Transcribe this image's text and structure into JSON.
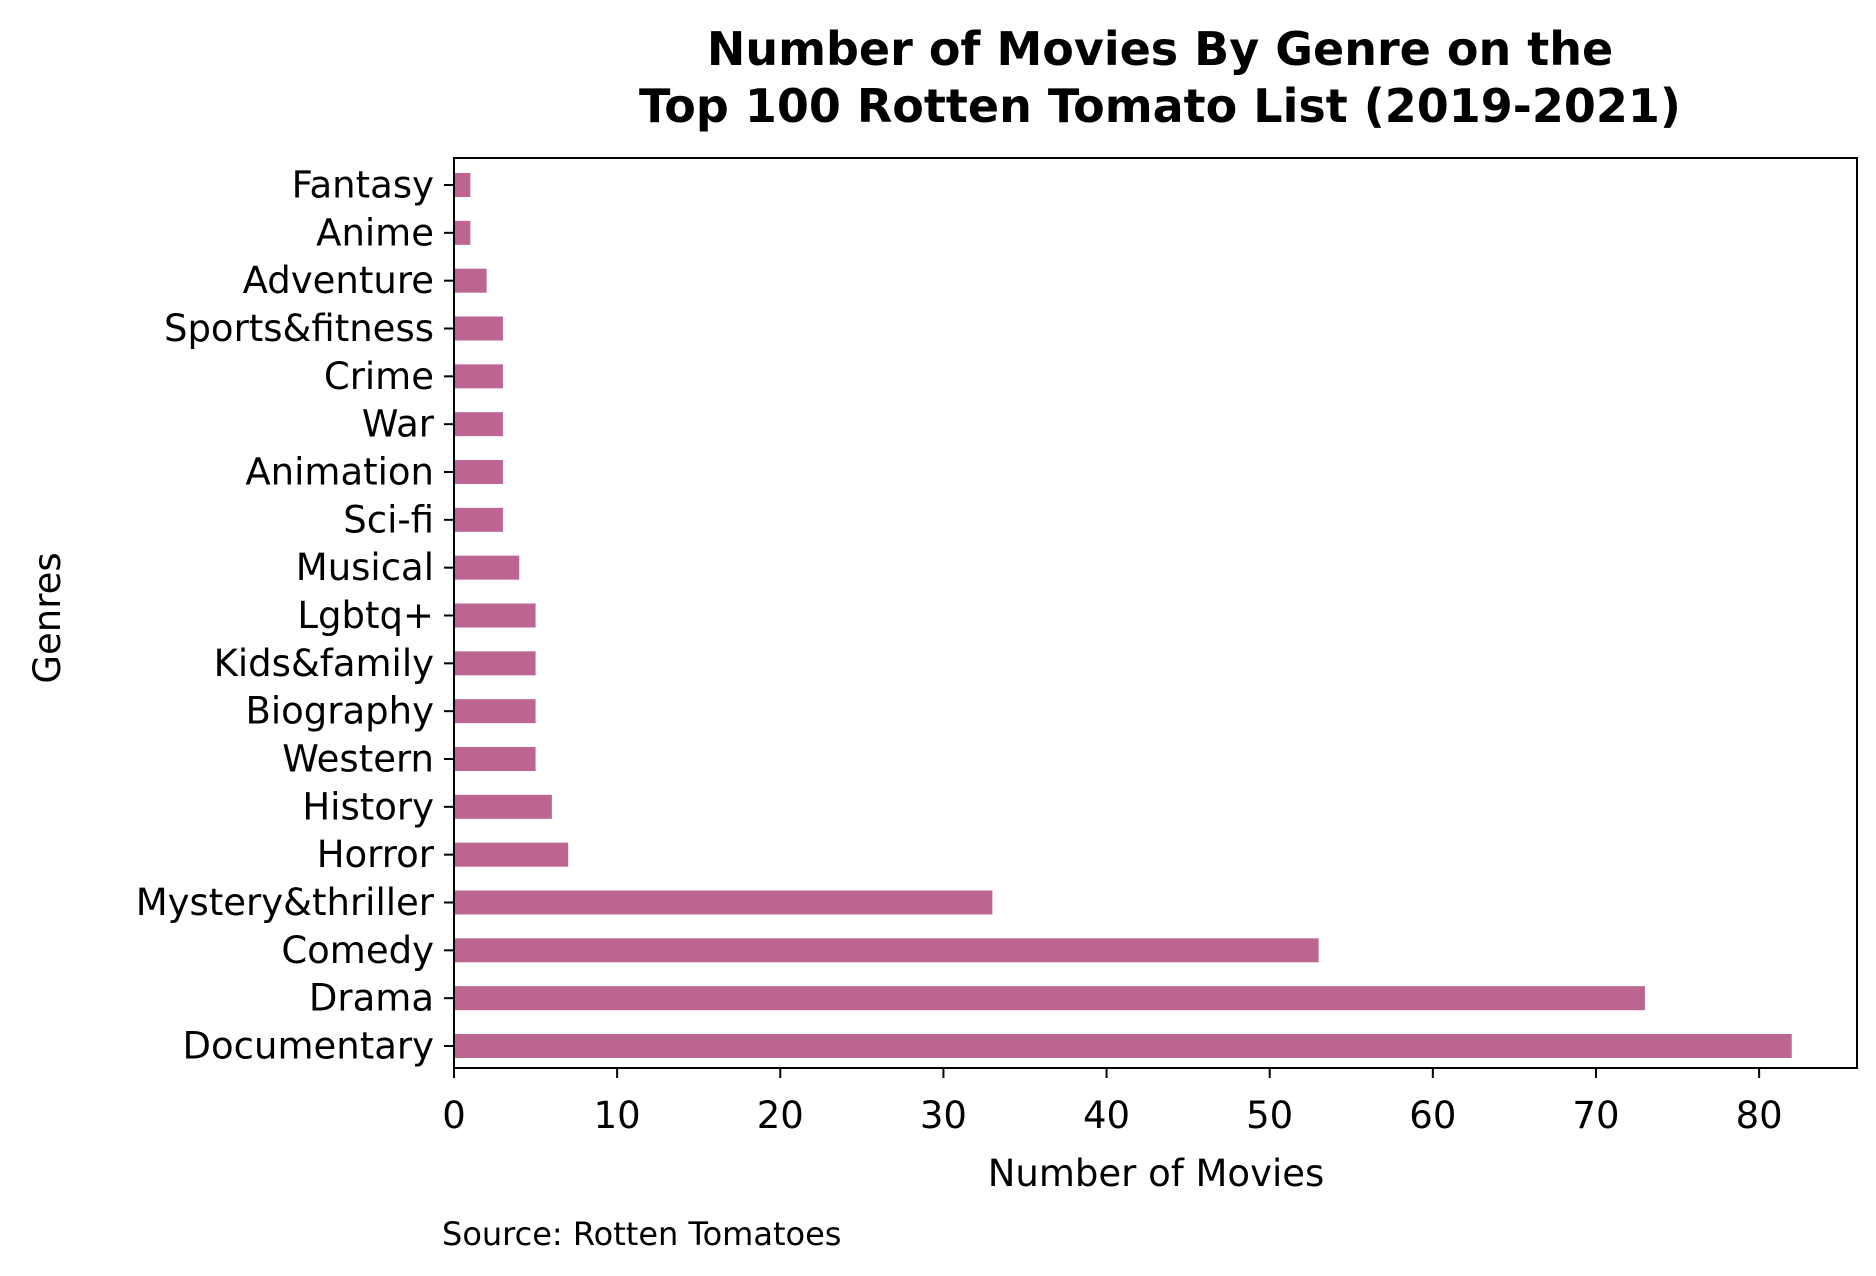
{
  "chart_data": {
    "type": "bar",
    "orientation": "horizontal",
    "title_lines": [
      "Number of Movies By Genre on the",
      "Top 100 Rotten Tomato List (2019-2021)"
    ],
    "xlabel": "Number of Movies",
    "ylabel": "Genres",
    "xlim": [
      0,
      86
    ],
    "xticks": [
      "0",
      "10",
      "20",
      "30",
      "40",
      "50",
      "60",
      "70",
      "80"
    ],
    "grid": false,
    "bar_color": "#bc6591",
    "categories": [
      "Documentary",
      "Drama",
      "Comedy",
      "Mystery&thriller",
      "Horror",
      "History",
      "Western",
      "Biography",
      "Kids&family",
      "Lgbtq+",
      "Musical",
      "Sci-fi",
      "Animation",
      "War",
      "Crime",
      "Sports&fitness",
      "Adventure",
      "Anime",
      "Fantasy"
    ],
    "values": [
      82,
      73,
      53,
      33,
      7,
      6,
      5,
      5,
      5,
      5,
      4,
      3,
      3,
      3,
      3,
      3,
      2,
      1,
      1
    ]
  },
  "source_note": "Source: Rotten Tomatoes"
}
